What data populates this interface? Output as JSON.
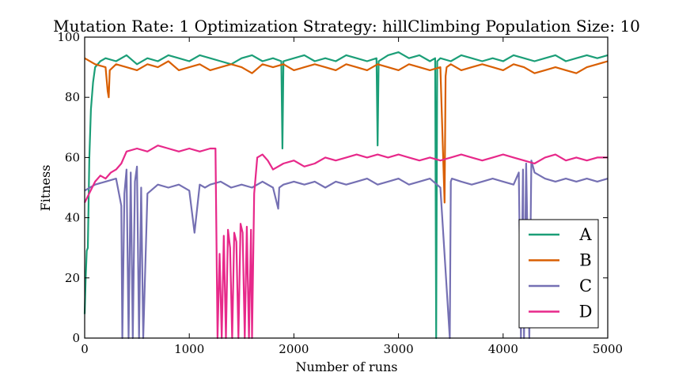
{
  "chart_data": {
    "type": "line",
    "title": "Mutation Rate: 1 Optimization Strategy: hillClimbing Population Size: 10",
    "xlabel": "Number of runs",
    "ylabel": "Fitness",
    "xlim": [
      0,
      5000
    ],
    "ylim": [
      0,
      100
    ],
    "xticks": [
      "0",
      "1000",
      "2000",
      "3000",
      "4000",
      "5000"
    ],
    "yticks": [
      "0",
      "20",
      "40",
      "60",
      "80",
      "100"
    ],
    "grid": false,
    "legend_position": "bottom-right",
    "colors": {
      "A": "#1b9e77",
      "B": "#d95f02",
      "C": "#7570b3",
      "D": "#e7298a"
    },
    "series": [
      {
        "name": "A",
        "x": [
          0,
          10,
          20,
          30,
          45,
          60,
          80,
          100,
          150,
          200,
          300,
          400,
          500,
          600,
          700,
          800,
          900,
          1000,
          1100,
          1200,
          1300,
          1400,
          1500,
          1600,
          1700,
          1800,
          1880,
          1890,
          1900,
          2000,
          2100,
          2200,
          2300,
          2400,
          2500,
          2600,
          2700,
          2790,
          2800,
          2810,
          2900,
          3000,
          3100,
          3200,
          3300,
          3350,
          3360,
          3370,
          3400,
          3500,
          3600,
          3700,
          3800,
          3900,
          4000,
          4100,
          4200,
          4300,
          4400,
          4500,
          4600,
          4700,
          4800,
          4900,
          5000
        ],
        "y": [
          8,
          20,
          29,
          30,
          60,
          76,
          85,
          90,
          92,
          93,
          92,
          94,
          91,
          93,
          92,
          94,
          93,
          92,
          94,
          93,
          92,
          91,
          93,
          94,
          92,
          93,
          92,
          63,
          92,
          93,
          94,
          92,
          93,
          92,
          94,
          93,
          92,
          93,
          64,
          92,
          94,
          95,
          93,
          94,
          92,
          93,
          0,
          92,
          93,
          92,
          94,
          93,
          92,
          93,
          92,
          94,
          93,
          92,
          93,
          94,
          92,
          93,
          94,
          93,
          94
        ]
      },
      {
        "name": "B",
        "x": [
          0,
          100,
          200,
          220,
          230,
          240,
          300,
          400,
          500,
          600,
          700,
          800,
          900,
          1000,
          1100,
          1200,
          1300,
          1400,
          1500,
          1600,
          1700,
          1800,
          1900,
          2000,
          2100,
          2200,
          2300,
          2400,
          2500,
          2600,
          2700,
          2800,
          2900,
          3000,
          3100,
          3200,
          3300,
          3400,
          3440,
          3450,
          3460,
          3500,
          3600,
          3700,
          3800,
          3900,
          4000,
          4100,
          4200,
          4300,
          4400,
          4500,
          4600,
          4700,
          4800,
          4900,
          5000
        ],
        "y": [
          93,
          91,
          90,
          82,
          80,
          89,
          91,
          90,
          89,
          91,
          90,
          92,
          89,
          90,
          91,
          89,
          90,
          91,
          90,
          88,
          91,
          90,
          91,
          89,
          90,
          91,
          90,
          89,
          91,
          90,
          89,
          91,
          90,
          89,
          91,
          90,
          89,
          90,
          45,
          87,
          90,
          91,
          89,
          90,
          91,
          90,
          89,
          91,
          90,
          88,
          89,
          90,
          89,
          88,
          90,
          91,
          92
        ]
      },
      {
        "name": "C",
        "x": [
          0,
          50,
          100,
          200,
          300,
          350,
          360,
          380,
          400,
          420,
          440,
          460,
          480,
          500,
          520,
          540,
          560,
          600,
          700,
          800,
          900,
          1000,
          1050,
          1100,
          1150,
          1200,
          1300,
          1400,
          1500,
          1600,
          1700,
          1800,
          1850,
          1860,
          1900,
          2000,
          2100,
          2200,
          2300,
          2400,
          2500,
          2600,
          2700,
          2800,
          2900,
          3000,
          3100,
          3200,
          3300,
          3400,
          3490,
          3500,
          3510,
          3600,
          3700,
          3800,
          3900,
          4000,
          4100,
          4150,
          4170,
          4190,
          4200,
          4220,
          4250,
          4270,
          4300,
          4400,
          4500,
          4600,
          4700,
          4800,
          4900,
          5000
        ],
        "y": [
          49,
          50,
          51,
          52,
          53,
          44,
          0,
          48,
          56,
          0,
          55,
          0,
          52,
          57,
          0,
          50,
          0,
          48,
          51,
          50,
          51,
          49,
          35,
          51,
          50,
          51,
          52,
          50,
          51,
          50,
          52,
          50,
          43,
          50,
          51,
          52,
          51,
          52,
          50,
          52,
          51,
          52,
          53,
          51,
          52,
          53,
          51,
          52,
          53,
          50,
          0,
          52,
          53,
          52,
          51,
          52,
          53,
          52,
          51,
          55,
          0,
          56,
          0,
          58,
          0,
          59,
          55,
          53,
          52,
          53,
          52,
          53,
          52,
          53
        ]
      },
      {
        "name": "D",
        "x": [
          0,
          100,
          150,
          200,
          250,
          300,
          350,
          400,
          500,
          600,
          700,
          800,
          900,
          1000,
          1100,
          1200,
          1250,
          1270,
          1290,
          1310,
          1330,
          1350,
          1370,
          1390,
          1410,
          1430,
          1450,
          1470,
          1490,
          1510,
          1530,
          1550,
          1570,
          1590,
          1600,
          1620,
          1650,
          1700,
          1750,
          1800,
          1900,
          2000,
          2100,
          2200,
          2300,
          2400,
          2500,
          2600,
          2700,
          2800,
          2900,
          3000,
          3100,
          3200,
          3300,
          3400,
          3500,
          3600,
          3700,
          3800,
          3900,
          4000,
          4100,
          4200,
          4300,
          4400,
          4500,
          4600,
          4700,
          4800,
          4900,
          5000
        ],
        "y": [
          45,
          52,
          54,
          53,
          55,
          56,
          58,
          62,
          63,
          62,
          64,
          63,
          62,
          63,
          62,
          63,
          63,
          0,
          28,
          0,
          34,
          0,
          36,
          30,
          0,
          35,
          32,
          0,
          38,
          35,
          0,
          37,
          0,
          36,
          0,
          48,
          60,
          61,
          59,
          56,
          58,
          59,
          57,
          58,
          60,
          59,
          60,
          61,
          60,
          61,
          60,
          61,
          60,
          59,
          60,
          59,
          60,
          61,
          60,
          59,
          60,
          61,
          60,
          59,
          58,
          60,
          61,
          59,
          60,
          59,
          60,
          60
        ]
      }
    ]
  }
}
